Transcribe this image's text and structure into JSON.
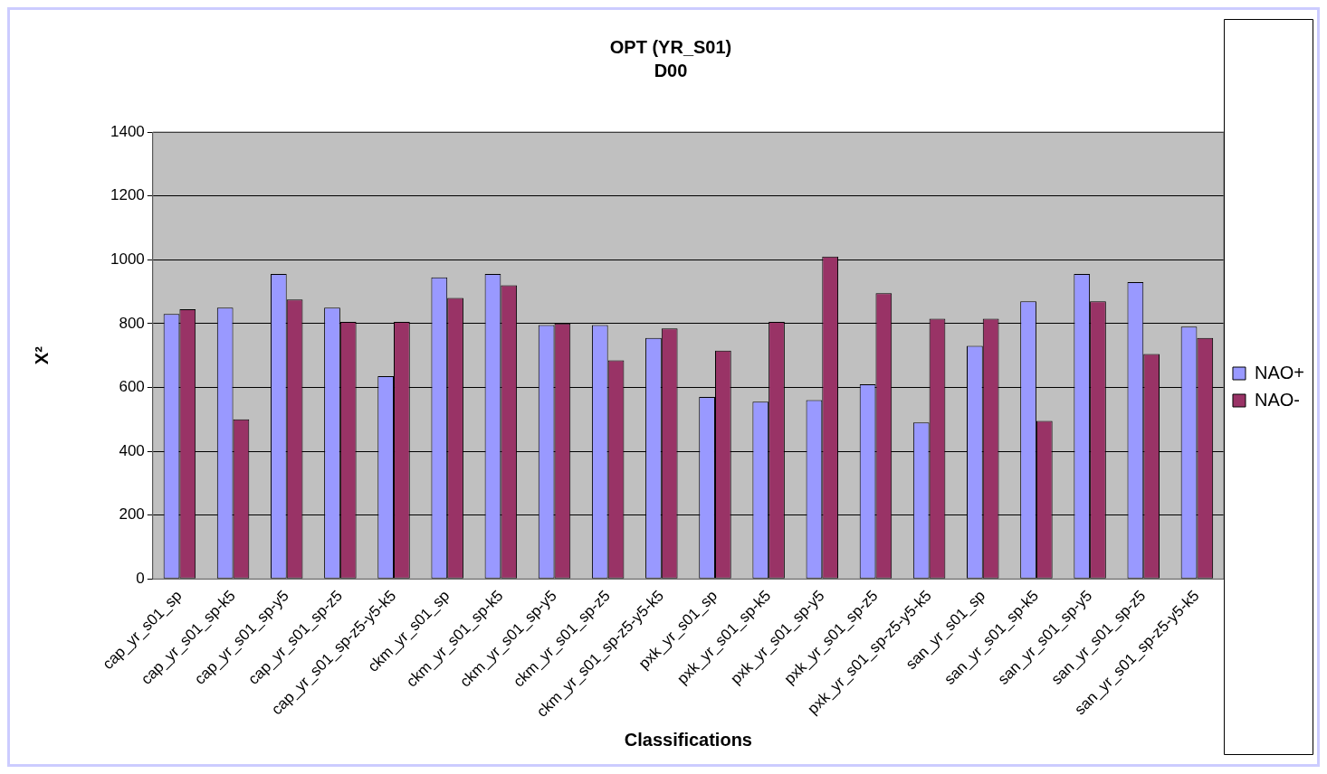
{
  "chart_data": {
    "type": "bar",
    "title": "OPT (YR_S01)",
    "subtitle": "D00",
    "xlabel": "Classifications",
    "ylabel": "X²",
    "categories": [
      "cap_yr_s01_sp",
      "cap_yr_s01_sp-k5",
      "cap_yr_s01_sp-y5",
      "cap_yr_s01_sp-z5",
      "cap_yr_s01_sp-z5-y5-k5",
      "ckm_yr_s01_sp",
      "ckm_yr_s01_sp-k5",
      "ckm_yr_s01_sp-y5",
      "ckm_yr_s01_sp-z5",
      "ckm_yr_s01_sp-z5-y5-k5",
      "pxk_yr_s01_sp",
      "pxk_yr_s01_sp-k5",
      "pxk_yr_s01_sp-y5",
      "pxk_yr_s01_sp-z5",
      "pxk_yr_s01_sp-z5-y5-k5",
      "san_yr_s01_sp",
      "san_yr_s01_sp-k5",
      "san_yr_s01_sp-y5",
      "san_yr_s01_sp-z5",
      "san_yr_s01_sp-z5-y5-k5"
    ],
    "series": [
      {
        "name": "NAO+",
        "color": "#9999ff",
        "values": [
          830,
          850,
          955,
          850,
          635,
          945,
          955,
          795,
          795,
          755,
          570,
          555,
          560,
          610,
          490,
          730,
          870,
          955,
          930,
          790
        ]
      },
      {
        "name": "NAO-",
        "color": "#993366",
        "values": [
          845,
          500,
          875,
          805,
          805,
          880,
          920,
          800,
          685,
          785,
          715,
          805,
          1010,
          895,
          815,
          815,
          495,
          870,
          705,
          755
        ]
      }
    ],
    "ylim": [
      0,
      1400
    ],
    "yticks": [
      0,
      200,
      400,
      600,
      800,
      1000,
      1200,
      1400
    ],
    "grid": "y",
    "legend": "right"
  }
}
